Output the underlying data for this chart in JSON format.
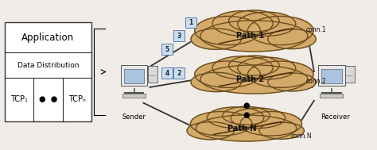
{
  "bg_color": "#f0ede8",
  "box_color": "#ffffff",
  "box_edge": "#333333",
  "light_blue": "#c8dff0",
  "cloud_color": "#d4aa6a",
  "cloud_edge": "#6b4c1e",
  "title": "Application",
  "row2": "Data Distribution",
  "sender_label": "Sender",
  "receiver_label": "Receiver",
  "path_labels": [
    "Path 1",
    "Path 2",
    "Path N"
  ],
  "conn_labels": [
    "conn.1",
    "conn.2",
    "conn.N"
  ],
  "packet_labels": [
    "1",
    "2",
    "3",
    "4",
    "5"
  ],
  "figsize": [
    4.74,
    1.89
  ],
  "dpi": 100
}
